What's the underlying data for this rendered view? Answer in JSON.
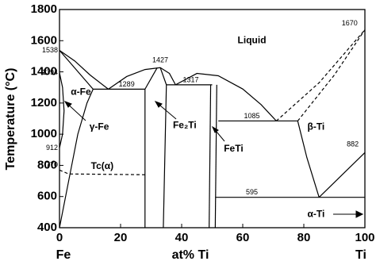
{
  "chart_data": {
    "type": "phase-diagram",
    "xlabel": "at% Ti",
    "ylabel": "Temperature (°C)",
    "x_end_labels": [
      "Fe",
      "Ti"
    ],
    "xlim": [
      0,
      100
    ],
    "ylim": [
      400,
      1800
    ],
    "xticks": [
      0,
      20,
      40,
      60,
      80,
      100
    ],
    "yticks": [
      400,
      600,
      800,
      1000,
      1200,
      1400,
      1600,
      1800
    ],
    "phase_labels": [
      "Liquid",
      "α-Fe",
      "γ-Fe",
      "Fe₂Ti",
      "FeTi",
      "β-Ti",
      "α-Ti",
      "Tc(α)"
    ],
    "temperature_labels": [
      1538,
      1394,
      912,
      770,
      1289,
      1427,
      1317,
      1085,
      1670,
      882,
      595
    ],
    "series": [
      {
        "x": [
          0,
          5,
          10,
          16
        ],
        "values": [
          1538,
          1470,
          1380,
          1289
        ],
        "color": "#000",
        "dashed": false
      },
      {
        "x": [
          0,
          11
        ],
        "values": [
          1538,
          1289
        ],
        "color": "#000",
        "dashed": false
      },
      {
        "x": [
          11,
          9,
          6,
          3,
          0
        ],
        "values": [
          1289,
          1200,
          1000,
          700,
          400
        ],
        "color": "#000",
        "dashed": false
      },
      {
        "x": [
          0,
          1,
          1.5,
          1,
          0
        ],
        "values": [
          1394,
          1300,
          1150,
          1000,
          912
        ],
        "color": "#000",
        "dashed": false
      },
      {
        "x": [
          11,
          28
        ],
        "values": [
          1289,
          1289
        ],
        "color": "#000",
        "dashed": false
      },
      {
        "x": [
          16,
          22,
          28,
          33,
          36,
          38
        ],
        "values": [
          1289,
          1370,
          1415,
          1427,
          1390,
          1317
        ],
        "color": "#000",
        "dashed": false
      },
      {
        "x": [
          28,
          28,
          32
        ],
        "values": [
          400,
          1289,
          1427
        ],
        "color": "#000",
        "dashed": false
      },
      {
        "x": [
          34,
          35,
          33
        ],
        "values": [
          400,
          1317,
          1427
        ],
        "color": "#000",
        "dashed": false
      },
      {
        "x": [
          35,
          50
        ],
        "values": [
          1317,
          1317
        ],
        "color": "#000",
        "dashed": false
      },
      {
        "x": [
          38,
          45,
          52,
          60,
          66,
          71
        ],
        "values": [
          1317,
          1390,
          1375,
          1290,
          1190,
          1085
        ],
        "color": "#000",
        "dashed": false
      },
      {
        "x": [
          49,
          49.5
        ],
        "values": [
          400,
          1317
        ],
        "color": "#000",
        "dashed": false
      },
      {
        "x": [
          51,
          51.5
        ],
        "values": [
          400,
          1317
        ],
        "color": "#000",
        "dashed": false
      },
      {
        "x": [
          52,
          78
        ],
        "values": [
          1085,
          1085
        ],
        "color": "#000",
        "dashed": false
      },
      {
        "x": [
          71,
          85,
          100
        ],
        "values": [
          1085,
          1330,
          1670
        ],
        "color": "#000",
        "dashed": true
      },
      {
        "x": [
          78,
          90,
          100
        ],
        "values": [
          1085,
          1380,
          1670
        ],
        "color": "#000",
        "dashed": true
      },
      {
        "x": [
          78,
          81,
          85
        ],
        "values": [
          1085,
          850,
          595
        ],
        "color": "#000",
        "dashed": false
      },
      {
        "x": [
          51,
          100
        ],
        "values": [
          595,
          595
        ],
        "color": "#000",
        "dashed": false
      },
      {
        "x": [
          85,
          100
        ],
        "values": [
          595,
          882
        ],
        "color": "#000",
        "dashed": false
      },
      {
        "x": [
          0,
          3,
          28
        ],
        "values": [
          770,
          745,
          740
        ],
        "color": "#000",
        "dashed": true
      }
    ]
  }
}
